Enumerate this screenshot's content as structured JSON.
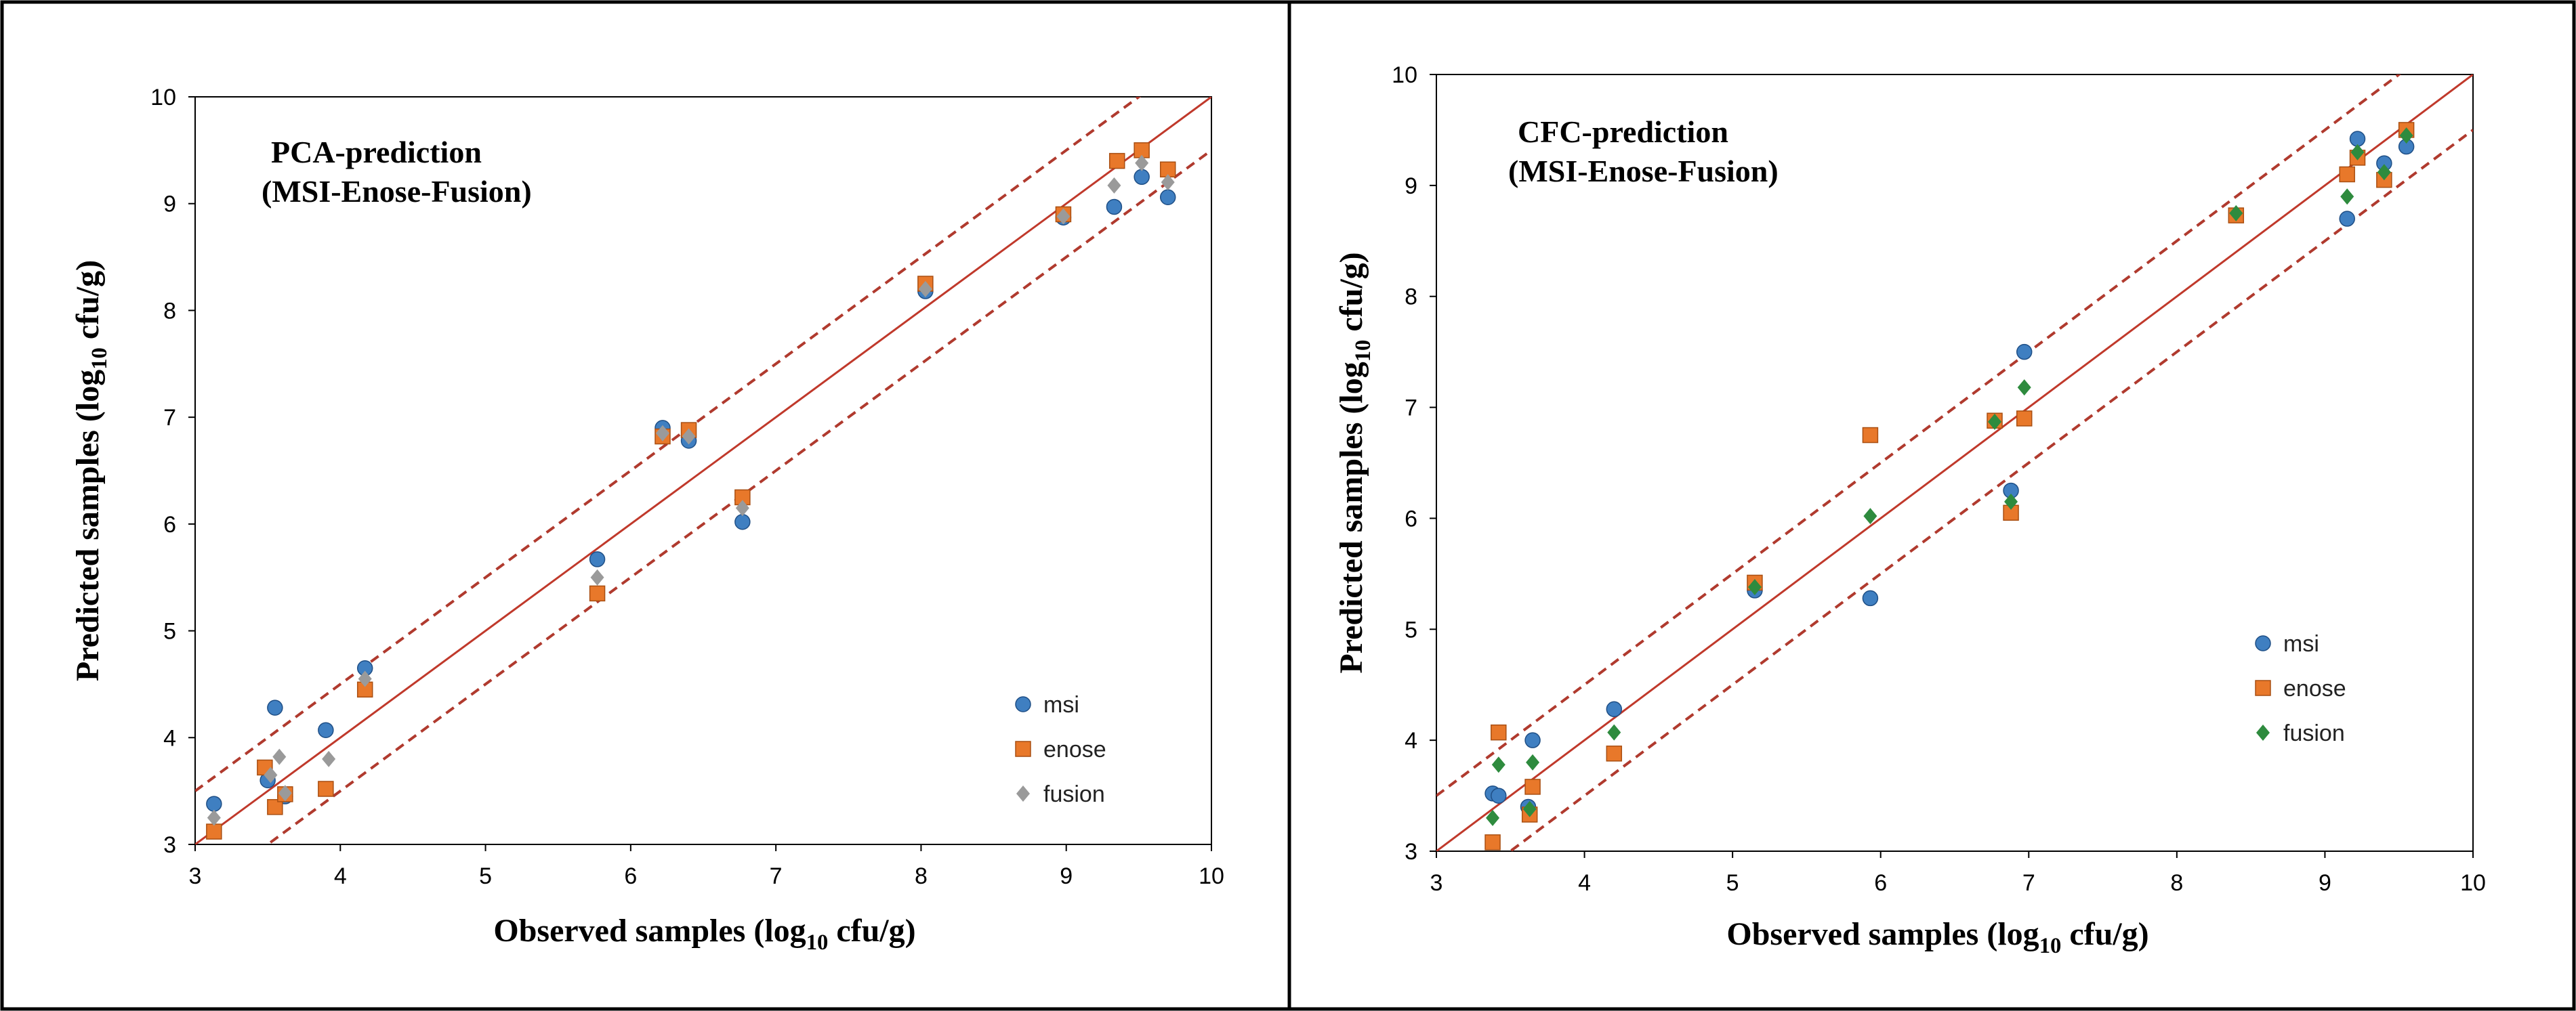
{
  "chart_data": [
    {
      "type": "scatter",
      "annotation": [
        "PCA-prediction",
        "(MSI-Enose-Fusion)"
      ],
      "xlabel": "Observed samples (log10 cfu/g)",
      "ylabel": "Predicted samples (log10 cfu/g)",
      "xlim": [
        3,
        10
      ],
      "ylim": [
        3,
        10
      ],
      "xticks": [
        3,
        4,
        5,
        6,
        7,
        8,
        9,
        10
      ],
      "yticks": [
        3,
        4,
        5,
        6,
        7,
        8,
        9,
        10
      ],
      "grid": false,
      "legend_position": "bottom-right",
      "reference_lines": {
        "fit_line": {
          "slope": 1,
          "intercept": 0,
          "color": "#c0392b",
          "style": "solid"
        },
        "upper_bound": {
          "slope": 1,
          "intercept": 0.5,
          "color": "#b03a2e",
          "style": "dashed"
        },
        "lower_bound": {
          "slope": 1,
          "intercept": -0.5,
          "color": "#b03a2e",
          "style": "dashed"
        }
      },
      "series": [
        {
          "name": "msi",
          "marker": "circle",
          "color": "#3f7fc1",
          "points": [
            [
              3.13,
              3.38
            ],
            [
              3.5,
              3.6
            ],
            [
              3.55,
              4.28
            ],
            [
              3.62,
              3.45
            ],
            [
              3.9,
              4.07
            ],
            [
              4.17,
              4.65
            ],
            [
              5.77,
              5.67
            ],
            [
              6.22,
              6.9
            ],
            [
              6.4,
              6.78
            ],
            [
              6.77,
              6.02
            ],
            [
              8.03,
              8.18
            ],
            [
              8.98,
              8.87
            ],
            [
              9.33,
              8.97
            ],
            [
              9.52,
              9.25
            ],
            [
              9.7,
              9.06
            ]
          ]
        },
        {
          "name": "enose",
          "marker": "square",
          "color": "#e8782a",
          "points": [
            [
              3.13,
              3.12
            ],
            [
              3.48,
              3.72
            ],
            [
              3.55,
              3.35
            ],
            [
              3.62,
              3.47
            ],
            [
              3.9,
              3.52
            ],
            [
              4.17,
              4.45
            ],
            [
              5.77,
              5.35
            ],
            [
              6.22,
              6.82
            ],
            [
              6.4,
              6.88
            ],
            [
              6.77,
              6.25
            ],
            [
              8.03,
              8.25
            ],
            [
              8.98,
              8.9
            ],
            [
              9.35,
              9.4
            ],
            [
              9.52,
              9.5
            ],
            [
              9.7,
              9.32
            ]
          ]
        },
        {
          "name": "fusion",
          "marker": "diamond",
          "color": "#9a9a9a",
          "points": [
            [
              3.13,
              3.25
            ],
            [
              3.52,
              3.65
            ],
            [
              3.58,
              3.82
            ],
            [
              3.62,
              3.48
            ],
            [
              3.92,
              3.8
            ],
            [
              4.17,
              4.55
            ],
            [
              5.77,
              5.5
            ],
            [
              6.22,
              6.85
            ],
            [
              6.4,
              6.82
            ],
            [
              6.77,
              6.15
            ],
            [
              8.03,
              8.2
            ],
            [
              8.98,
              8.88
            ],
            [
              9.33,
              9.17
            ],
            [
              9.52,
              9.38
            ],
            [
              9.7,
              9.2
            ]
          ]
        }
      ]
    },
    {
      "type": "scatter",
      "annotation": [
        "CFC-prediction",
        "(MSI-Enose-Fusion)"
      ],
      "xlabel": "Observed samples (log10 cfu/g)",
      "ylabel": "Predicted samples (log10 cfu/g)",
      "xlim": [
        3,
        10
      ],
      "ylim": [
        3,
        10
      ],
      "xticks": [
        3,
        4,
        5,
        6,
        7,
        8,
        9,
        10
      ],
      "yticks": [
        3,
        4,
        5,
        6,
        7,
        8,
        9,
        10
      ],
      "grid": false,
      "legend_position": "bottom-right",
      "reference_lines": {
        "fit_line": {
          "slope": 1,
          "intercept": 0,
          "color": "#c0392b",
          "style": "solid"
        },
        "upper_bound": {
          "slope": 1,
          "intercept": 0.5,
          "color": "#b03a2e",
          "style": "dashed"
        },
        "lower_bound": {
          "slope": 1,
          "intercept": -0.5,
          "color": "#b03a2e",
          "style": "dashed"
        }
      },
      "series": [
        {
          "name": "msi",
          "marker": "circle",
          "color": "#3f7fc1",
          "points": [
            [
              3.38,
              3.52
            ],
            [
              3.42,
              3.5
            ],
            [
              3.62,
              3.4
            ],
            [
              3.65,
              4.0
            ],
            [
              4.2,
              4.28
            ],
            [
              5.15,
              5.35
            ],
            [
              5.93,
              5.28
            ],
            [
              6.88,
              6.25
            ],
            [
              6.97,
              7.5
            ],
            [
              9.15,
              8.7
            ],
            [
              9.22,
              9.42
            ],
            [
              9.4,
              9.2
            ],
            [
              9.55,
              9.35
            ]
          ]
        },
        {
          "name": "enose",
          "marker": "square",
          "color": "#e8782a",
          "points": [
            [
              3.38,
              3.08
            ],
            [
              3.42,
              4.07
            ],
            [
              3.63,
              3.33
            ],
            [
              3.65,
              3.58
            ],
            [
              4.2,
              3.88
            ],
            [
              5.15,
              5.42
            ],
            [
              5.93,
              6.75
            ],
            [
              6.77,
              6.88
            ],
            [
              6.88,
              6.05
            ],
            [
              6.97,
              6.9
            ],
            [
              8.4,
              8.73
            ],
            [
              9.15,
              9.1
            ],
            [
              9.22,
              9.25
            ],
            [
              9.4,
              9.05
            ],
            [
              9.55,
              9.5
            ]
          ]
        },
        {
          "name": "fusion",
          "marker": "diamond",
          "color": "#2e8b3e",
          "points": [
            [
              3.38,
              3.3
            ],
            [
              3.42,
              3.78
            ],
            [
              3.63,
              3.38
            ],
            [
              3.65,
              3.8
            ],
            [
              4.2,
              4.07
            ],
            [
              5.15,
              5.38
            ],
            [
              5.93,
              6.02
            ],
            [
              6.77,
              6.87
            ],
            [
              6.88,
              6.15
            ],
            [
              6.97,
              7.18
            ],
            [
              8.4,
              8.75
            ],
            [
              9.15,
              8.9
            ],
            [
              9.22,
              9.3
            ],
            [
              9.4,
              9.12
            ],
            [
              9.55,
              9.45
            ]
          ]
        }
      ]
    }
  ]
}
